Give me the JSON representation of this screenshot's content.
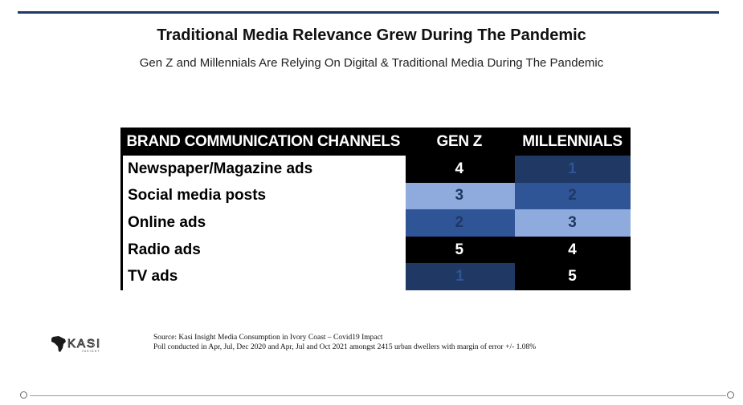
{
  "title": "Traditional Media Relevance Grew During The Pandemic",
  "subtitle": "Gen Z and Millennials Are Relying On Digital & Traditional Media During The Pandemic",
  "table": {
    "headers": [
      "BRAND COMMUNICATION CHANNELS",
      "GEN Z",
      "MILLENNIALS"
    ],
    "rows": [
      {
        "channel": "Newspaper/Magazine ads",
        "genz": "4",
        "millennials": "1"
      },
      {
        "channel": "Social media posts",
        "genz": "3",
        "millennials": "2"
      },
      {
        "channel": "Online ads",
        "genz": "2",
        "millennials": "3"
      },
      {
        "channel": "Radio ads",
        "genz": "5",
        "millennials": "4"
      },
      {
        "channel": "TV ads",
        "genz": "1",
        "millennials": "5"
      }
    ],
    "rank_colors": {
      "1": {
        "bg": "#1f3864",
        "fg": "#2f5597"
      },
      "2": {
        "bg": "#2f5597",
        "fg": "#1f3864"
      },
      "3": {
        "bg": "#8faadc",
        "fg": "#1f3864"
      },
      "4": {
        "bg": "#000000",
        "fg": "#ffffff"
      },
      "5": {
        "bg": "#000000",
        "fg": "#ffffff"
      }
    }
  },
  "logo": {
    "text": "KASI",
    "tagline": "INSIGHT"
  },
  "source": {
    "line1": "Source: Kasi Insight  Media Consumption in Ivory Coast – Covid19 Impact",
    "line2": "Poll conducted in Apr, Jul, Dec 2020 and Apr, Jul and Oct 2021 amongst 2415 urban dwellers with margin of error +/- 1.08%"
  },
  "colors": {
    "rule": "#1f3864"
  }
}
